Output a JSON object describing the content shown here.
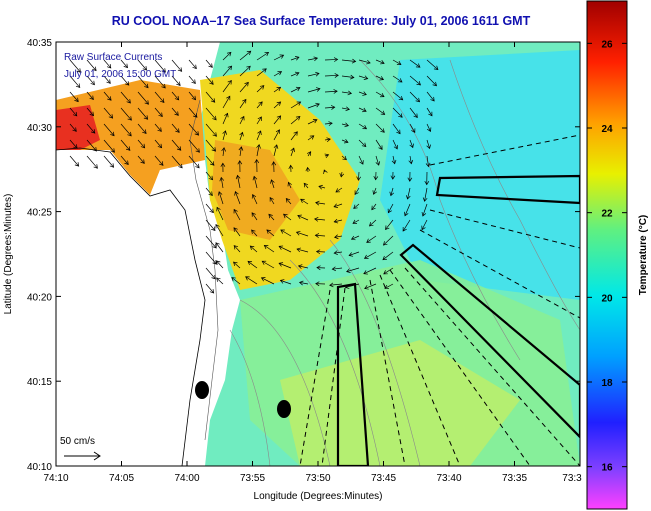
{
  "title": "RU COOL  NOAA–17  Sea Surface Temperature:  July 01, 2006 1611 GMT",
  "map": {
    "xlabel": "Longitude (Degrees:Minutes)",
    "ylabel": "Latitude (Degrees:Minutes)",
    "x_ticks": [
      "74:10",
      "74:05",
      "74:00",
      "73:55",
      "73:50",
      "73:45",
      "73:40",
      "73:35",
      "73:3"
    ],
    "y_ticks": [
      "40:35",
      "40:30",
      "40:25",
      "40:20",
      "40:15",
      "40:10"
    ],
    "current_label_1": "Raw Surface Currents",
    "current_label_2": "July 01, 2006 15:00 GMT",
    "scale_label": "50 cm/s",
    "sampling_points": 2
  },
  "colorbar": {
    "label": "Temperature (°C)",
    "ticks": [
      "26",
      "24",
      "22",
      "20",
      "18",
      "16"
    ],
    "range": [
      15,
      27
    ]
  }
}
